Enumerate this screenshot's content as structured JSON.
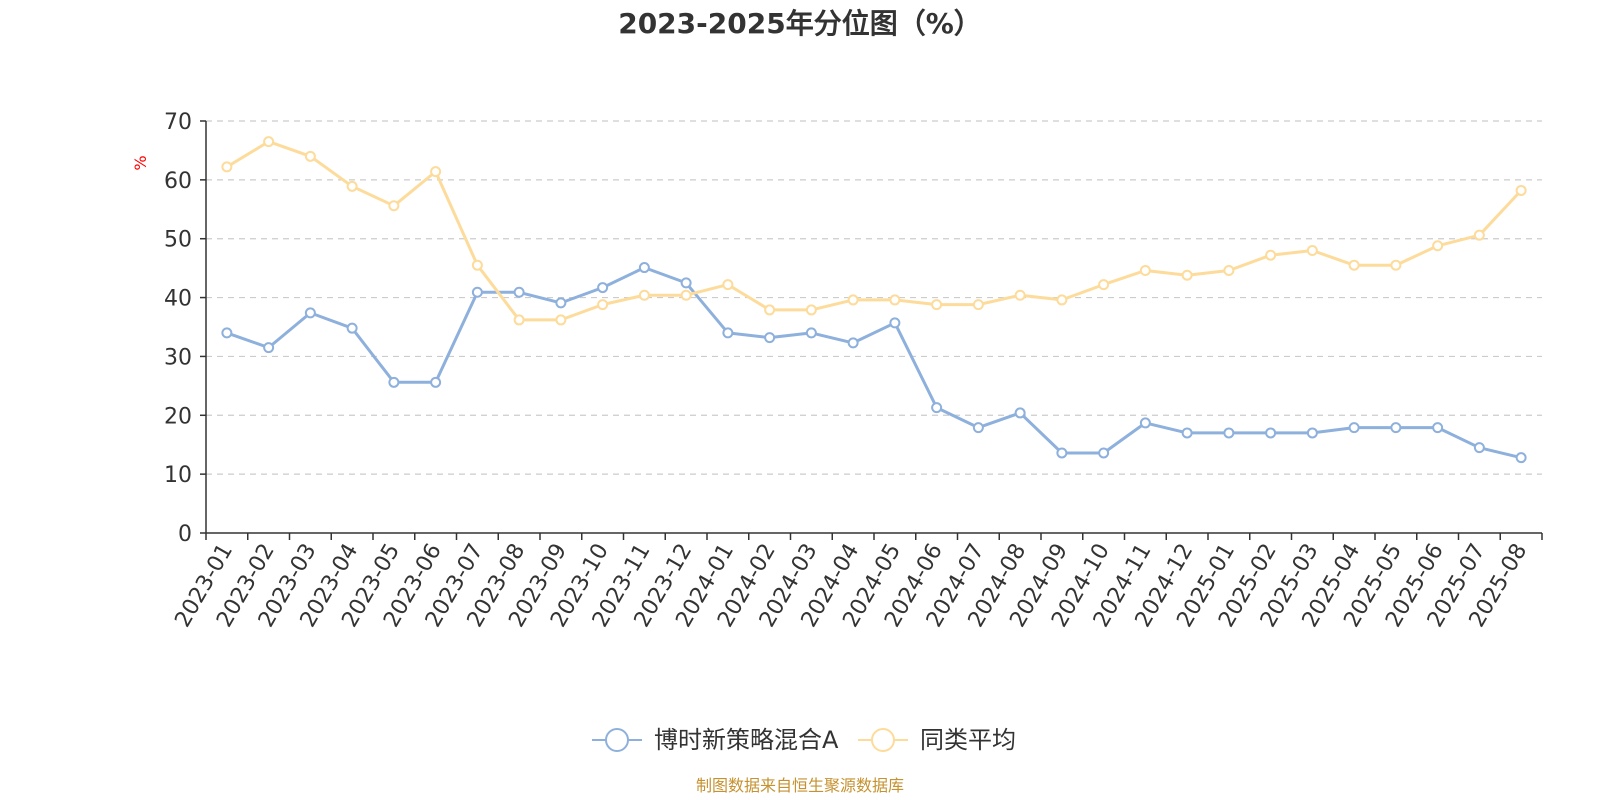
{
  "chart_data": {
    "type": "line",
    "title": "2023-2025年分位图（%）",
    "ylabel": "%",
    "xlabel": "",
    "ylim": [
      0,
      70
    ],
    "yticks": [
      0,
      10,
      20,
      30,
      40,
      50,
      60,
      70
    ],
    "grid": true,
    "legend_position": "bottom",
    "categories": [
      "2023-01",
      "2023-02",
      "2023-03",
      "2023-04",
      "2023-05",
      "2023-06",
      "2023-07",
      "2023-08",
      "2023-09",
      "2023-10",
      "2023-11",
      "2023-12",
      "2024-01",
      "2024-02",
      "2024-03",
      "2024-04",
      "2024-05",
      "2024-06",
      "2024-07",
      "2024-08",
      "2024-09",
      "2024-10",
      "2024-11",
      "2024-12",
      "2025-01",
      "2025-02",
      "2025-03",
      "2025-04",
      "2025-05",
      "2025-06",
      "2025-07",
      "2025-08"
    ],
    "series": [
      {
        "name": "博时新策略混合A",
        "color": "#8eb0dc",
        "values": [
          34.0,
          31.5,
          37.4,
          34.8,
          25.6,
          25.6,
          40.9,
          40.9,
          39.1,
          41.7,
          45.1,
          42.5,
          34.0,
          33.2,
          34.0,
          32.3,
          35.7,
          21.3,
          17.9,
          20.4,
          13.6,
          13.6,
          18.7,
          17.0,
          17.0,
          17.0,
          17.0,
          17.9,
          17.9,
          17.9,
          14.5,
          12.8
        ]
      },
      {
        "name": "同类平均",
        "color": "#fddb9b",
        "values": [
          62.2,
          66.5,
          64.0,
          58.9,
          55.6,
          61.4,
          45.5,
          36.2,
          36.2,
          38.8,
          40.4,
          40.4,
          42.2,
          37.9,
          37.9,
          39.6,
          39.6,
          38.8,
          38.8,
          40.4,
          39.6,
          42.2,
          44.6,
          43.8,
          44.6,
          47.2,
          48.0,
          45.5,
          45.5,
          48.8,
          50.6,
          58.2
        ]
      }
    ]
  },
  "source_note": "制图数据来自恒生聚源数据库"
}
